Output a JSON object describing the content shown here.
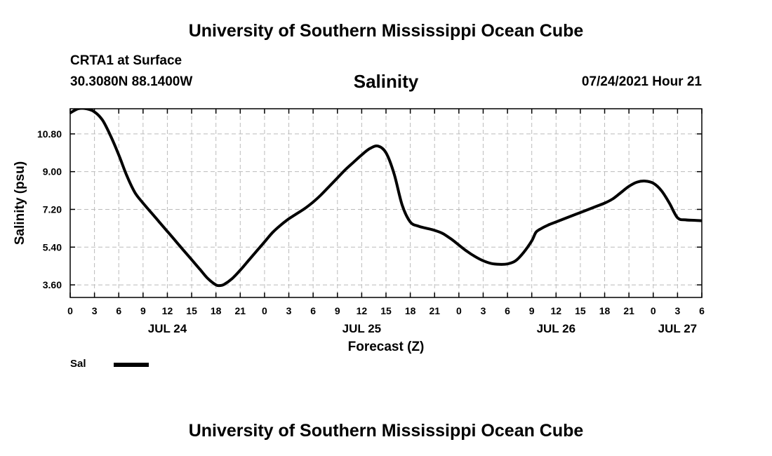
{
  "header": {
    "top_title": "University of Southern Mississippi Ocean Cube",
    "station": "CRTA1 at Surface",
    "coords": "30.3080N  88.1400W",
    "run_time": "07/24/2021 Hour 21",
    "bottom_title": "University of Southern Mississippi Ocean Cube"
  },
  "colors": {
    "line": "#000000",
    "grid": "#bbbbbb",
    "frame": "#000000"
  },
  "chart_data": {
    "type": "line",
    "title": "Salinity",
    "xlabel": "Forecast (Z)",
    "ylabel": "Salinity (psu)",
    "xlim": [
      0,
      78
    ],
    "ylim": [
      3.0,
      12.0
    ],
    "yticks": [
      3.6,
      5.4,
      7.2,
      9.0,
      10.8
    ],
    "ytick_labels": [
      "3.60",
      "5.40",
      "7.20",
      "9.00",
      "10.80"
    ],
    "xticks": [
      0,
      3,
      6,
      9,
      12,
      15,
      18,
      21,
      24,
      27,
      30,
      33,
      36,
      39,
      42,
      45,
      48,
      51,
      54,
      57,
      60,
      63,
      66,
      69,
      72,
      75,
      78
    ],
    "xtick_labels": [
      "0",
      "3",
      "6",
      "9",
      "12",
      "15",
      "18",
      "21",
      "0",
      "3",
      "6",
      "9",
      "12",
      "15",
      "18",
      "21",
      "0",
      "3",
      "6",
      "9",
      "12",
      "15",
      "18",
      "21",
      "0",
      "3",
      "6"
    ],
    "date_labels": [
      {
        "x": 12,
        "label": "JUL 24"
      },
      {
        "x": 36,
        "label": "JUL 25"
      },
      {
        "x": 60,
        "label": "JUL 26"
      },
      {
        "x": 75,
        "label": "JUL 27"
      }
    ],
    "legend": [
      {
        "name": "Sal",
        "placement": "bottom-left"
      }
    ],
    "series": [
      {
        "name": "Sal",
        "x": [
          0,
          1,
          2,
          3,
          4,
          5,
          6,
          7,
          8,
          9,
          10,
          11,
          12,
          13,
          14,
          15,
          16,
          17,
          18,
          18.5,
          19,
          20,
          21,
          22,
          23,
          24,
          25,
          26,
          27,
          28,
          29,
          30,
          31,
          32,
          33,
          34,
          35,
          36,
          37,
          38,
          39,
          40,
          41,
          42,
          43,
          44,
          45,
          46,
          47,
          48,
          49,
          50,
          51,
          52,
          53,
          54,
          55,
          56,
          57,
          57.5,
          58,
          59,
          60,
          61,
          62,
          63,
          64,
          65,
          66,
          67,
          68,
          69,
          70,
          71,
          72,
          73,
          74,
          75,
          76,
          77,
          78
        ],
        "y": [
          11.8,
          12.0,
          12.0,
          11.85,
          11.45,
          10.7,
          9.8,
          8.8,
          8.0,
          7.5,
          7.05,
          6.6,
          6.15,
          5.7,
          5.25,
          4.8,
          4.35,
          3.9,
          3.6,
          3.57,
          3.62,
          3.9,
          4.3,
          4.75,
          5.2,
          5.65,
          6.1,
          6.45,
          6.75,
          7.0,
          7.25,
          7.55,
          7.9,
          8.3,
          8.7,
          9.1,
          9.45,
          9.8,
          10.1,
          10.22,
          9.9,
          8.9,
          7.4,
          6.6,
          6.4,
          6.3,
          6.2,
          6.05,
          5.8,
          5.5,
          5.2,
          4.95,
          4.75,
          4.62,
          4.58,
          4.6,
          4.75,
          5.15,
          5.7,
          6.1,
          6.25,
          6.45,
          6.6,
          6.75,
          6.9,
          7.05,
          7.2,
          7.35,
          7.5,
          7.7,
          8.0,
          8.3,
          8.5,
          8.55,
          8.45,
          8.1,
          7.5,
          6.8,
          6.7,
          6.68,
          6.66
        ]
      }
    ]
  }
}
